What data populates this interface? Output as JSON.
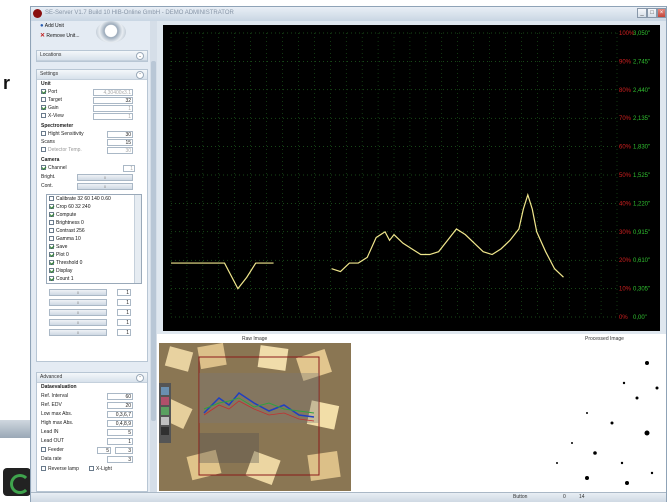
{
  "window": {
    "title": "SE-Server V1.7 Build 10 HIB-Online GmbH - DEMO ADMINISTRATOR"
  },
  "units": {
    "add_label": "Add Unit",
    "remove_label": "Remove Unit..."
  },
  "locations": {
    "header": "Locations"
  },
  "settings": {
    "header": "Settings",
    "unit_title": "Unit",
    "port_label": "Port",
    "port_value": "4,30400x3.1",
    "target_label": "Target",
    "target_value": "32",
    "gain_label": "Gain",
    "gain_value": "1",
    "xview_label": "X-View",
    "xview_value": "1",
    "spectrometer_title": "Spectrometer",
    "high_sens_label": "Hight Sensitivity",
    "high_sens_value": "30",
    "scans_label": "Scans",
    "scans_value": "15",
    "detector_temp_label": "Detector Temp.",
    "detector_temp_value": "30",
    "camera_title": "Camera",
    "channel_label": "Channel",
    "channel_value": "1",
    "bright_label": "Bright.",
    "bright_value": "0",
    "cont_label": "Cont.",
    "cont_value": "0",
    "camera_items": [
      "Calibrate 32 60 140 0.60",
      "Crop 60 32 240",
      "Compute",
      "Brightness 0",
      "Contrast 256",
      "Gamma 10",
      "Save",
      "Plot 0",
      "Threshold 0",
      "Display",
      "Count 1"
    ],
    "slider_values": [
      "1",
      "1",
      "1",
      "1",
      "1"
    ],
    "slider_labels": [
      "0",
      "0",
      "0",
      "0",
      "0"
    ]
  },
  "advanced": {
    "header": "Advanced",
    "title": "Dataevaluation",
    "ref_interval_label": "Ref. Interval",
    "ref_interval_value": "60",
    "ref_edv_label": "Ref. EDV",
    "ref_edv_value": "20",
    "low_max_label": "Low max Abs.",
    "low_max_value": "0,3,6,7",
    "high_max_label": "High max Abs.",
    "high_max_value": "0,4,8,9",
    "lead_in_label": "Lead IN",
    "lead_in_value": "5",
    "lead_out_label": "Lead OUT",
    "lead_out_value": "1",
    "feeder_label": "Feeder",
    "feeder_value": "5",
    "feeder_value2": "3",
    "data_rate_label": "Data rate",
    "data_rate_value": "3",
    "reverse_lamp_label": "Reverse lamp",
    "xlight_label": "X-Light"
  },
  "images": {
    "raw_title": "Raw Image",
    "processed_title": "Processed Image"
  },
  "status": {
    "button_label": "Button",
    "value1": "0",
    "value2": "14"
  },
  "colors": {
    "chart_bg": "#000000",
    "line": "#f0e68c",
    "grid": "#2f8f2f",
    "pct_label": "#d02020",
    "val_label": "#30c030"
  },
  "chart_data": {
    "type": "line",
    "right_axis_percent": [
      "100%",
      "90%",
      "80%",
      "70%",
      "60%",
      "50%",
      "40%",
      "30%",
      "20%",
      "10%",
      "0%"
    ],
    "right_axis_values": [
      "3,050\"",
      "2,745\"",
      "2,440\"",
      "2,135\"",
      "1,830\"",
      "1,525\"",
      "1,220\"",
      "0,915\"",
      "0,610\"",
      "0,305\"",
      "0,00\""
    ],
    "ylim": [
      0,
      100
    ],
    "xlim": [
      0,
      100
    ],
    "series": [
      {
        "x": [
          0,
          12,
          15,
          17,
          19,
          23
        ],
        "y": [
          19,
          19,
          10,
          14,
          19,
          19
        ]
      },
      {
        "x": [
          36,
          38,
          40,
          42,
          44,
          46,
          48,
          49,
          50,
          52,
          54,
          56,
          58,
          60,
          62,
          64,
          66,
          68,
          70,
          72,
          74,
          76,
          78,
          79,
          80,
          81,
          82,
          84,
          86,
          88
        ],
        "y": [
          17,
          16,
          19,
          19,
          21,
          28,
          30,
          27,
          29,
          26,
          24,
          22,
          22,
          23,
          27,
          31,
          29,
          26,
          23,
          22,
          24,
          27,
          31,
          38,
          43,
          38,
          30,
          23,
          17,
          14
        ]
      }
    ]
  }
}
